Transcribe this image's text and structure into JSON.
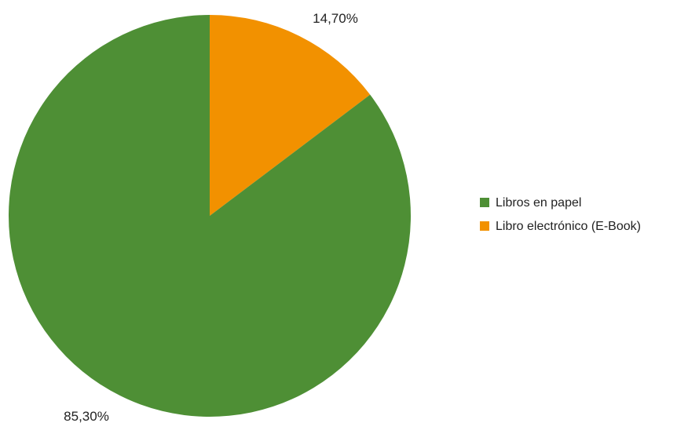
{
  "chart_data": {
    "type": "pie",
    "slices": [
      {
        "label": "Libro electrónico (E-Book)",
        "value": 14.7,
        "display": "14,70%",
        "color": "#F29100"
      },
      {
        "label": "Libros en papel",
        "value": 85.3,
        "display": "85,30%",
        "color": "#4E8F35"
      }
    ],
    "legend": {
      "placement": "right",
      "items": [
        {
          "label": "Libros en papel",
          "color": "#4E8F35"
        },
        {
          "label": "Libro electrónico (E-Book)",
          "color": "#F29100"
        }
      ]
    }
  }
}
